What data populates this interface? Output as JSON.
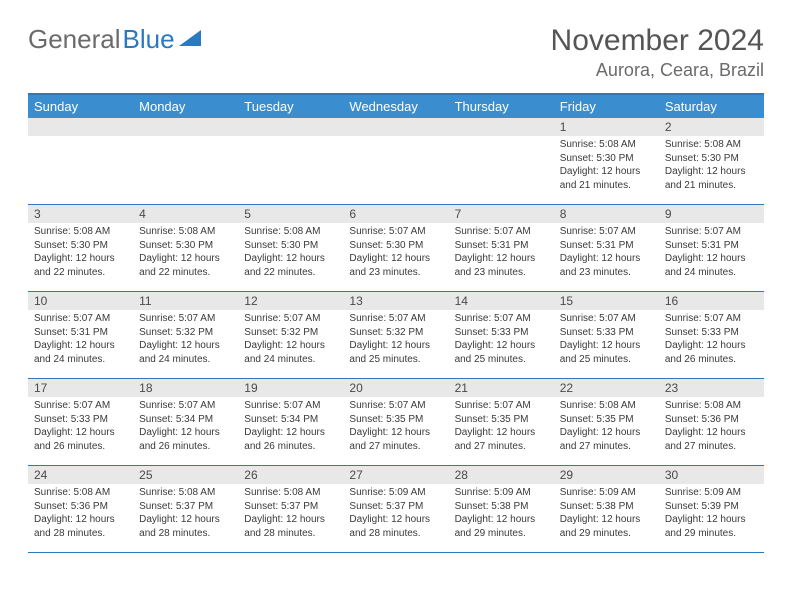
{
  "logo": {
    "text_gray": "General",
    "text_blue": "Blue"
  },
  "header": {
    "month_title": "November 2024",
    "location": "Aurora, Ceara, Brazil"
  },
  "colors": {
    "header_bar": "#3a8ed0",
    "header_border": "#2b7ac0",
    "date_strip": "#e8e8e8",
    "text": "#3a3a3a",
    "title": "#555555"
  },
  "day_names": [
    "Sunday",
    "Monday",
    "Tuesday",
    "Wednesday",
    "Thursday",
    "Friday",
    "Saturday"
  ],
  "weeks": [
    [
      {
        "date": "",
        "sunrise": "",
        "sunset": "",
        "daylight": ""
      },
      {
        "date": "",
        "sunrise": "",
        "sunset": "",
        "daylight": ""
      },
      {
        "date": "",
        "sunrise": "",
        "sunset": "",
        "daylight": ""
      },
      {
        "date": "",
        "sunrise": "",
        "sunset": "",
        "daylight": ""
      },
      {
        "date": "",
        "sunrise": "",
        "sunset": "",
        "daylight": ""
      },
      {
        "date": "1",
        "sunrise": "Sunrise: 5:08 AM",
        "sunset": "Sunset: 5:30 PM",
        "daylight": "Daylight: 12 hours and 21 minutes."
      },
      {
        "date": "2",
        "sunrise": "Sunrise: 5:08 AM",
        "sunset": "Sunset: 5:30 PM",
        "daylight": "Daylight: 12 hours and 21 minutes."
      }
    ],
    [
      {
        "date": "3",
        "sunrise": "Sunrise: 5:08 AM",
        "sunset": "Sunset: 5:30 PM",
        "daylight": "Daylight: 12 hours and 22 minutes."
      },
      {
        "date": "4",
        "sunrise": "Sunrise: 5:08 AM",
        "sunset": "Sunset: 5:30 PM",
        "daylight": "Daylight: 12 hours and 22 minutes."
      },
      {
        "date": "5",
        "sunrise": "Sunrise: 5:08 AM",
        "sunset": "Sunset: 5:30 PM",
        "daylight": "Daylight: 12 hours and 22 minutes."
      },
      {
        "date": "6",
        "sunrise": "Sunrise: 5:07 AM",
        "sunset": "Sunset: 5:30 PM",
        "daylight": "Daylight: 12 hours and 23 minutes."
      },
      {
        "date": "7",
        "sunrise": "Sunrise: 5:07 AM",
        "sunset": "Sunset: 5:31 PM",
        "daylight": "Daylight: 12 hours and 23 minutes."
      },
      {
        "date": "8",
        "sunrise": "Sunrise: 5:07 AM",
        "sunset": "Sunset: 5:31 PM",
        "daylight": "Daylight: 12 hours and 23 minutes."
      },
      {
        "date": "9",
        "sunrise": "Sunrise: 5:07 AM",
        "sunset": "Sunset: 5:31 PM",
        "daylight": "Daylight: 12 hours and 24 minutes."
      }
    ],
    [
      {
        "date": "10",
        "sunrise": "Sunrise: 5:07 AM",
        "sunset": "Sunset: 5:31 PM",
        "daylight": "Daylight: 12 hours and 24 minutes."
      },
      {
        "date": "11",
        "sunrise": "Sunrise: 5:07 AM",
        "sunset": "Sunset: 5:32 PM",
        "daylight": "Daylight: 12 hours and 24 minutes."
      },
      {
        "date": "12",
        "sunrise": "Sunrise: 5:07 AM",
        "sunset": "Sunset: 5:32 PM",
        "daylight": "Daylight: 12 hours and 24 minutes."
      },
      {
        "date": "13",
        "sunrise": "Sunrise: 5:07 AM",
        "sunset": "Sunset: 5:32 PM",
        "daylight": "Daylight: 12 hours and 25 minutes."
      },
      {
        "date": "14",
        "sunrise": "Sunrise: 5:07 AM",
        "sunset": "Sunset: 5:33 PM",
        "daylight": "Daylight: 12 hours and 25 minutes."
      },
      {
        "date": "15",
        "sunrise": "Sunrise: 5:07 AM",
        "sunset": "Sunset: 5:33 PM",
        "daylight": "Daylight: 12 hours and 25 minutes."
      },
      {
        "date": "16",
        "sunrise": "Sunrise: 5:07 AM",
        "sunset": "Sunset: 5:33 PM",
        "daylight": "Daylight: 12 hours and 26 minutes."
      }
    ],
    [
      {
        "date": "17",
        "sunrise": "Sunrise: 5:07 AM",
        "sunset": "Sunset: 5:33 PM",
        "daylight": "Daylight: 12 hours and 26 minutes."
      },
      {
        "date": "18",
        "sunrise": "Sunrise: 5:07 AM",
        "sunset": "Sunset: 5:34 PM",
        "daylight": "Daylight: 12 hours and 26 minutes."
      },
      {
        "date": "19",
        "sunrise": "Sunrise: 5:07 AM",
        "sunset": "Sunset: 5:34 PM",
        "daylight": "Daylight: 12 hours and 26 minutes."
      },
      {
        "date": "20",
        "sunrise": "Sunrise: 5:07 AM",
        "sunset": "Sunset: 5:35 PM",
        "daylight": "Daylight: 12 hours and 27 minutes."
      },
      {
        "date": "21",
        "sunrise": "Sunrise: 5:07 AM",
        "sunset": "Sunset: 5:35 PM",
        "daylight": "Daylight: 12 hours and 27 minutes."
      },
      {
        "date": "22",
        "sunrise": "Sunrise: 5:08 AM",
        "sunset": "Sunset: 5:35 PM",
        "daylight": "Daylight: 12 hours and 27 minutes."
      },
      {
        "date": "23",
        "sunrise": "Sunrise: 5:08 AM",
        "sunset": "Sunset: 5:36 PM",
        "daylight": "Daylight: 12 hours and 27 minutes."
      }
    ],
    [
      {
        "date": "24",
        "sunrise": "Sunrise: 5:08 AM",
        "sunset": "Sunset: 5:36 PM",
        "daylight": "Daylight: 12 hours and 28 minutes."
      },
      {
        "date": "25",
        "sunrise": "Sunrise: 5:08 AM",
        "sunset": "Sunset: 5:37 PM",
        "daylight": "Daylight: 12 hours and 28 minutes."
      },
      {
        "date": "26",
        "sunrise": "Sunrise: 5:08 AM",
        "sunset": "Sunset: 5:37 PM",
        "daylight": "Daylight: 12 hours and 28 minutes."
      },
      {
        "date": "27",
        "sunrise": "Sunrise: 5:09 AM",
        "sunset": "Sunset: 5:37 PM",
        "daylight": "Daylight: 12 hours and 28 minutes."
      },
      {
        "date": "28",
        "sunrise": "Sunrise: 5:09 AM",
        "sunset": "Sunset: 5:38 PM",
        "daylight": "Daylight: 12 hours and 29 minutes."
      },
      {
        "date": "29",
        "sunrise": "Sunrise: 5:09 AM",
        "sunset": "Sunset: 5:38 PM",
        "daylight": "Daylight: 12 hours and 29 minutes."
      },
      {
        "date": "30",
        "sunrise": "Sunrise: 5:09 AM",
        "sunset": "Sunset: 5:39 PM",
        "daylight": "Daylight: 12 hours and 29 minutes."
      }
    ]
  ]
}
